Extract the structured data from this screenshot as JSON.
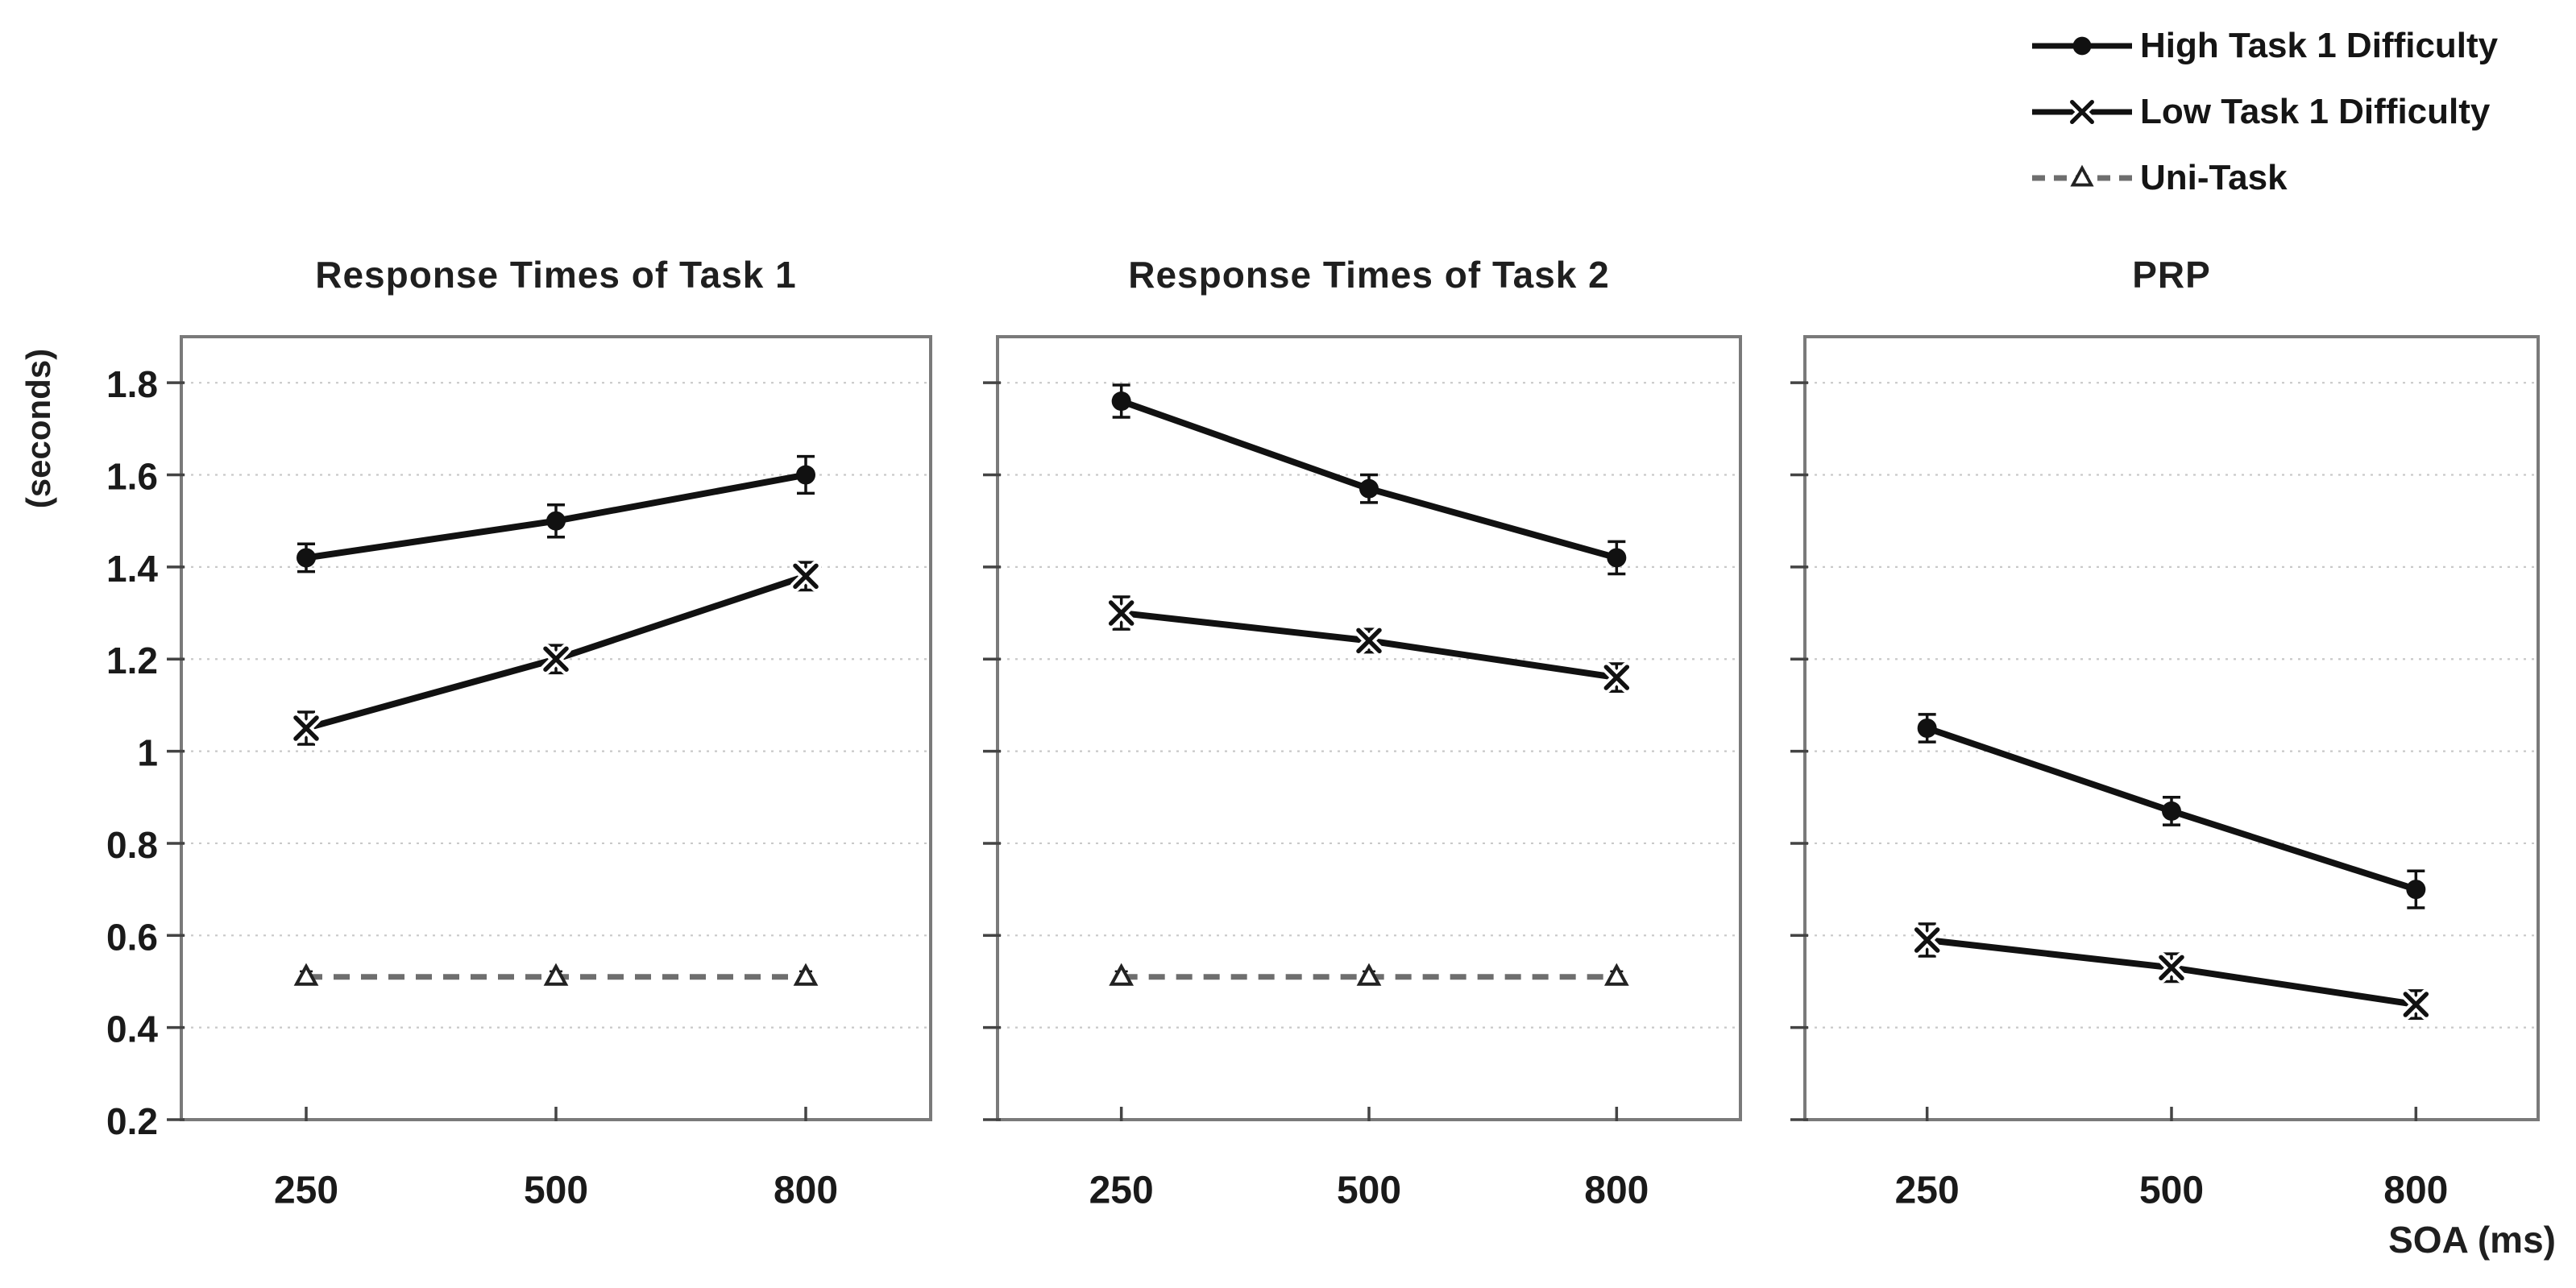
{
  "figure": {
    "y_axis_unit_label": "(seconds)",
    "x_axis_label": "SOA (ms)",
    "colors": {
      "series_black": "#111111",
      "uni_task_gray": "#6e6e6e",
      "axis_border_gray": "#7a7a7a",
      "gridline_gray": "#c9c9c9",
      "tick_mark_gray": "#444444",
      "text": "#1a1a1a",
      "marker_fill_white": "#ffffff"
    }
  },
  "legend": {
    "items": [
      {
        "label": "High Task 1 Difficulty",
        "marker": "circle",
        "line": "solid"
      },
      {
        "label": "Low Task 1 Difficulty",
        "marker": "x",
        "line": "solid"
      },
      {
        "label": "Uni-Task",
        "marker": "triangle",
        "line": "dashed"
      }
    ]
  },
  "chart_data": [
    {
      "type": "line",
      "title": "Response Times of Task 1",
      "xlabel": "SOA (ms)",
      "ylabel": "(seconds)",
      "categories": [
        250,
        500,
        800
      ],
      "x_tick_labels": [
        "250",
        "500",
        "800"
      ],
      "ylim": [
        0.2,
        1.9
      ],
      "yticks": [
        0.2,
        0.4,
        0.6,
        0.8,
        1.0,
        1.2,
        1.4,
        1.6,
        1.8
      ],
      "y_tick_labels": [
        "0.2",
        "0.4",
        "0.6",
        "0.8",
        "1",
        "1.2",
        "1.4",
        "1.6",
        "1.8"
      ],
      "grid": "dotted-horizontal",
      "series": [
        {
          "name": "High Task 1 Difficulty",
          "marker": "circle",
          "style": "solid",
          "values": [
            1.42,
            1.5,
            1.6
          ],
          "errors": [
            0.03,
            0.035,
            0.04
          ]
        },
        {
          "name": "Low Task 1 Difficulty",
          "marker": "x",
          "style": "solid",
          "values": [
            1.05,
            1.2,
            1.38
          ],
          "errors": [
            0.035,
            0.03,
            0.03
          ]
        },
        {
          "name": "Uni-Task",
          "marker": "triangle",
          "style": "dashed",
          "values": [
            0.51,
            0.51,
            0.51
          ],
          "errors": [
            0.012,
            0.012,
            0.012
          ]
        }
      ]
    },
    {
      "type": "line",
      "title": "Response Times of Task 2",
      "xlabel": "SOA (ms)",
      "ylabel": "(seconds)",
      "categories": [
        250,
        500,
        800
      ],
      "x_tick_labels": [
        "250",
        "500",
        "800"
      ],
      "ylim": [
        0.2,
        1.9
      ],
      "yticks": [
        0.2,
        0.4,
        0.6,
        0.8,
        1.0,
        1.2,
        1.4,
        1.6,
        1.8
      ],
      "y_tick_labels": [
        "0.2",
        "0.4",
        "0.6",
        "0.8",
        "1",
        "1.2",
        "1.4",
        "1.6",
        "1.8"
      ],
      "grid": "dotted-horizontal",
      "series": [
        {
          "name": "High Task 1 Difficulty",
          "marker": "circle",
          "style": "solid",
          "values": [
            1.76,
            1.57,
            1.42
          ],
          "errors": [
            0.035,
            0.03,
            0.035
          ]
        },
        {
          "name": "Low Task 1 Difficulty",
          "marker": "x",
          "style": "solid",
          "values": [
            1.3,
            1.24,
            1.16
          ],
          "errors": [
            0.035,
            0.025,
            0.03
          ]
        },
        {
          "name": "Uni-Task",
          "marker": "triangle",
          "style": "dashed",
          "values": [
            0.51,
            0.51,
            0.51
          ],
          "errors": [
            0.012,
            0.012,
            0.012
          ]
        }
      ]
    },
    {
      "type": "line",
      "title": "PRP",
      "xlabel": "SOA (ms)",
      "ylabel": "(seconds)",
      "categories": [
        250,
        500,
        800
      ],
      "x_tick_labels": [
        "250",
        "500",
        "800"
      ],
      "ylim": [
        0.2,
        1.9
      ],
      "yticks": [
        0.2,
        0.4,
        0.6,
        0.8,
        1.0,
        1.2,
        1.4,
        1.6,
        1.8
      ],
      "y_tick_labels": [
        "0.2",
        "0.4",
        "0.6",
        "0.8",
        "1",
        "1.2",
        "1.4",
        "1.6",
        "1.8"
      ],
      "grid": "dotted-horizontal",
      "series": [
        {
          "name": "High Task 1 Difficulty",
          "marker": "circle",
          "style": "solid",
          "values": [
            1.05,
            0.87,
            0.7
          ],
          "errors": [
            0.03,
            0.03,
            0.04
          ]
        },
        {
          "name": "Low Task 1 Difficulty",
          "marker": "x",
          "style": "solid",
          "values": [
            0.59,
            0.53,
            0.45
          ],
          "errors": [
            0.035,
            0.03,
            0.03
          ]
        }
      ]
    }
  ]
}
